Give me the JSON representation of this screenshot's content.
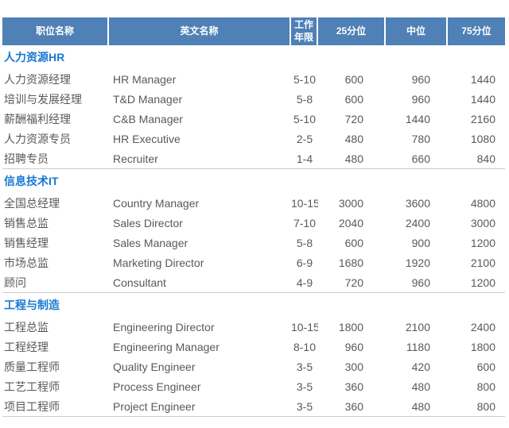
{
  "colors": {
    "header_bg": "#4f80b6",
    "header_text": "#ffffff",
    "section_title": "#1a79d2",
    "body_text": "#595959",
    "divider": "#cccccc"
  },
  "table": {
    "columns": [
      {
        "label": "职位名称"
      },
      {
        "label": "英文名称"
      },
      {
        "label": "工作年限"
      },
      {
        "label": "25分位"
      },
      {
        "label": "中位"
      },
      {
        "label": "75分位"
      }
    ],
    "sections": [
      {
        "title": "人力资源HR",
        "rows": [
          {
            "cn": "人力资源经理",
            "en": "HR Manager",
            "years": "5-10",
            "p25": "600",
            "p50": "960",
            "p75": "1440"
          },
          {
            "cn": "培训与发展经理",
            "en": "T&D Manager",
            "years": "5-8",
            "p25": "600",
            "p50": "960",
            "p75": "1440"
          },
          {
            "cn": "薪酬福利经理",
            "en": "C&B Manager",
            "years": "5-10",
            "p25": "720",
            "p50": "1440",
            "p75": "2160"
          },
          {
            "cn": "人力资源专员",
            "en": "HR Executive",
            "years": "2-5",
            "p25": "480",
            "p50": "780",
            "p75": "1080"
          },
          {
            "cn": "招聘专员",
            "en": "Recruiter",
            "years": "1-4",
            "p25": "480",
            "p50": "660",
            "p75": "840"
          }
        ]
      },
      {
        "title": "信息技术IT",
        "rows": [
          {
            "cn": "全国总经理",
            "en": "Country Manager",
            "years": "10-15",
            "p25": "3000",
            "p50": "3600",
            "p75": "4800"
          },
          {
            "cn": "销售总监",
            "en": "Sales Director",
            "years": "7-10",
            "p25": "2040",
            "p50": "2400",
            "p75": "3000"
          },
          {
            "cn": "销售经理",
            "en": "Sales Manager",
            "years": "5-8",
            "p25": "600",
            "p50": "900",
            "p75": "1200"
          },
          {
            "cn": "市场总监",
            "en": "Marketing Director",
            "years": "6-9",
            "p25": "1680",
            "p50": "1920",
            "p75": "2100"
          },
          {
            "cn": "顾问",
            "en": "Consultant",
            "years": "4-9",
            "p25": "720",
            "p50": "960",
            "p75": "1200"
          }
        ]
      },
      {
        "title": "工程与制造",
        "rows": [
          {
            "cn": "工程总监",
            "en": "Engineering Director",
            "years": "10-15",
            "p25": "1800",
            "p50": "2100",
            "p75": "2400"
          },
          {
            "cn": "工程经理",
            "en": "Engineering Manager",
            "years": "8-10",
            "p25": "960",
            "p50": "1180",
            "p75": "1800"
          },
          {
            "cn": "质量工程师",
            "en": "Quality Engineer",
            "years": "3-5",
            "p25": "300",
            "p50": "420",
            "p75": "600"
          },
          {
            "cn": "工艺工程师",
            "en": "Process Engineer",
            "years": "3-5",
            "p25": "360",
            "p50": "480",
            "p75": "800"
          },
          {
            "cn": "项目工程师",
            "en": "Project Engineer",
            "years": "3-5",
            "p25": "360",
            "p50": "480",
            "p75": "800"
          }
        ]
      }
    ]
  }
}
